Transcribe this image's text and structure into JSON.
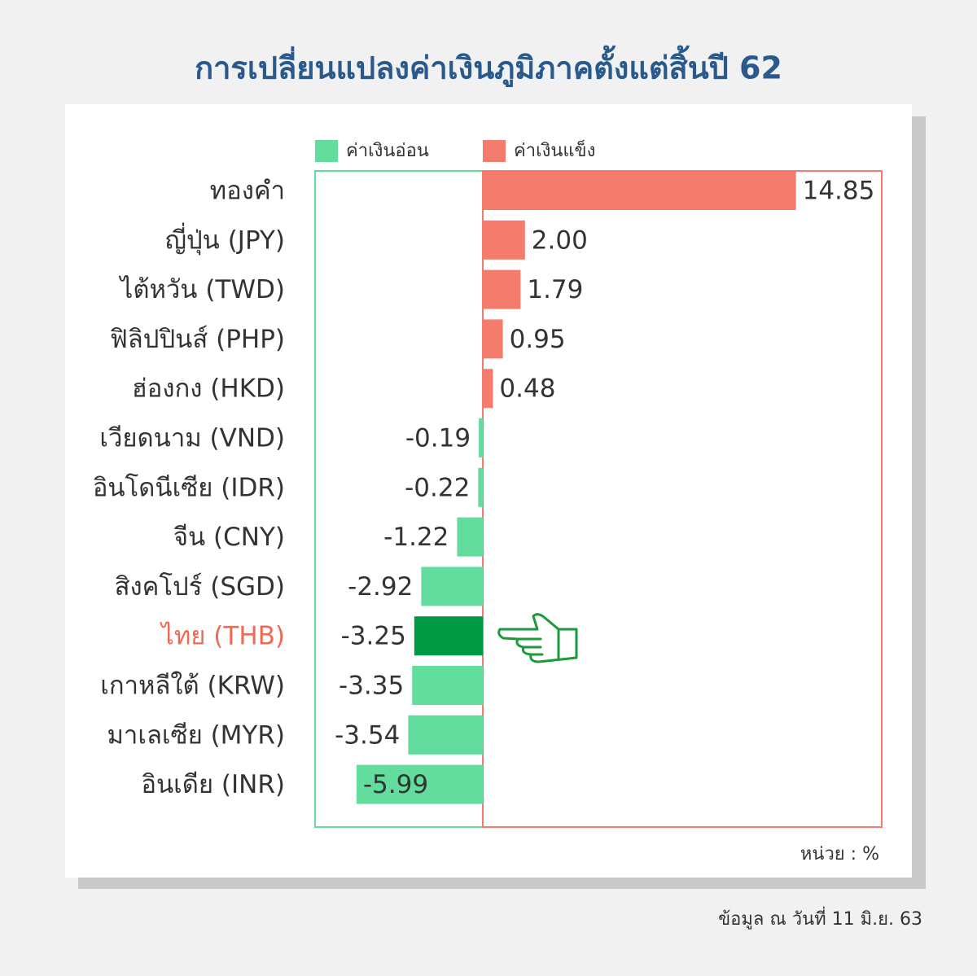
{
  "chart_data": {
    "type": "bar",
    "orientation": "horizontal",
    "title": "การเปลี่ยนแปลงค่าเงินภูมิภาคตั้งแต่สิ้นปี 62",
    "legend": [
      {
        "label": "ค่าเงินอ่อน",
        "color": "#62dd9e"
      },
      {
        "label": "ค่าเงินแข็ง",
        "color": "#f47c6c"
      }
    ],
    "categories": [
      "ทองคำ",
      "ญี่ปุ่น (JPY)",
      "ไต้หวัน (TWD)",
      "ฟิลิปปินส์ (PHP)",
      "ฮ่องกง (HKD)",
      "เวียดนาม (VND)",
      "อินโดนีเซีย (IDR)",
      "จีน (CNY)",
      "สิงคโปร์ (SGD)",
      "ไทย (THB)",
      "เกาหลีใต้ (KRW)",
      "มาเลเซีย (MYR)",
      "อินเดีย (INR)"
    ],
    "values": [
      14.85,
      2.0,
      1.79,
      0.95,
      0.48,
      -0.19,
      -0.22,
      -1.22,
      -2.92,
      -3.25,
      -3.35,
      -3.54,
      -5.99
    ],
    "value_labels": [
      "14.85",
      "2.00",
      "1.79",
      "0.95",
      "0.48",
      "-0.19",
      "-0.22",
      "-1.22",
      "-2.92",
      "-3.25",
      "-3.35",
      "-3.54",
      "-5.99"
    ],
    "colors": [
      "#f47c6c",
      "#f47c6c",
      "#f47c6c",
      "#f47c6c",
      "#f47c6c",
      "#62dd9e",
      "#62dd9e",
      "#62dd9e",
      "#62dd9e",
      "#009944",
      "#62dd9e",
      "#62dd9e",
      "#62dd9e"
    ],
    "label_colors": [
      "#333333",
      "#333333",
      "#333333",
      "#333333",
      "#333333",
      "#333333",
      "#333333",
      "#333333",
      "#333333",
      "#ee6a55",
      "#333333",
      "#333333",
      "#333333"
    ],
    "unit_note": "หน่วย : %",
    "source": "ข้อมูล ณ วันที่ 11 มิ.ย. 63"
  }
}
